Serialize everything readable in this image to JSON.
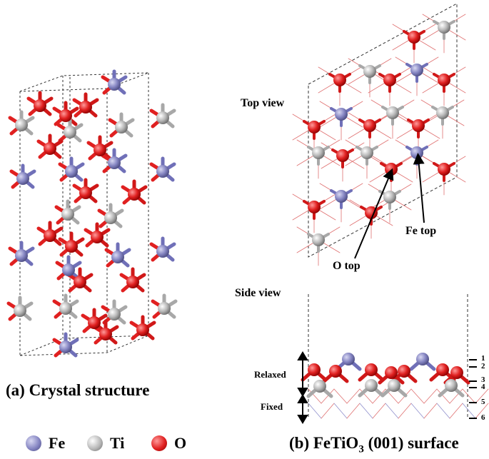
{
  "panel_a": {
    "caption": "(a) Crystal structure"
  },
  "panel_b": {
    "caption_prefix": "(b) FeTiO",
    "caption_sub": "3",
    "caption_suffix": " (001) surface",
    "top_view_label": "Top view",
    "side_view_label": "Side view",
    "o_top_label": "O top",
    "fe_top_label": "Fe top",
    "relaxed_label": "Relaxed",
    "fixed_label": "Fixed",
    "layer_numbers": [
      "1",
      "2",
      "3",
      "4",
      "5",
      "6"
    ]
  },
  "legend": [
    {
      "symbol": "Fe",
      "color": "#8585c2"
    },
    {
      "symbol": "Ti",
      "color": "#b8b8b8"
    },
    {
      "symbol": "O",
      "color": "#e02020"
    }
  ],
  "colors": {
    "fe": "#8585c2",
    "ti": "#b8b8b8",
    "o": "#e02020"
  }
}
